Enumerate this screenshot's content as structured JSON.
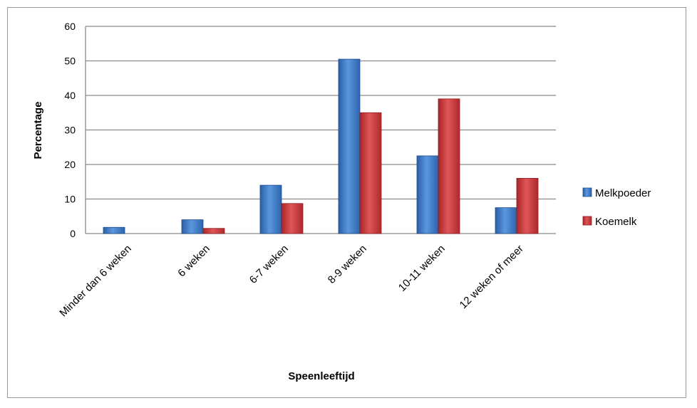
{
  "chart_data": {
    "type": "bar",
    "categories": [
      "Minder dan 6 weken",
      "6 weken",
      "6-7 weken",
      "8-9 weken",
      "10-11 weken",
      "12 weken of meer"
    ],
    "series": [
      {
        "name": "Melkpoeder",
        "values": [
          1.8,
          4,
          14,
          50.5,
          22.5,
          7.5
        ],
        "color": "#3a76c4"
      },
      {
        "name": "Koemelk",
        "values": [
          0,
          1.5,
          8.7,
          35,
          39,
          16
        ],
        "color": "#c8393b"
      }
    ],
    "title": "",
    "xlabel": "Speenleeftijd",
    "ylabel": "Percentage",
    "ylim": [
      0,
      60
    ],
    "yticks": [
      0,
      10,
      20,
      30,
      40,
      50,
      60
    ],
    "grid": true,
    "legend_position": "right"
  }
}
